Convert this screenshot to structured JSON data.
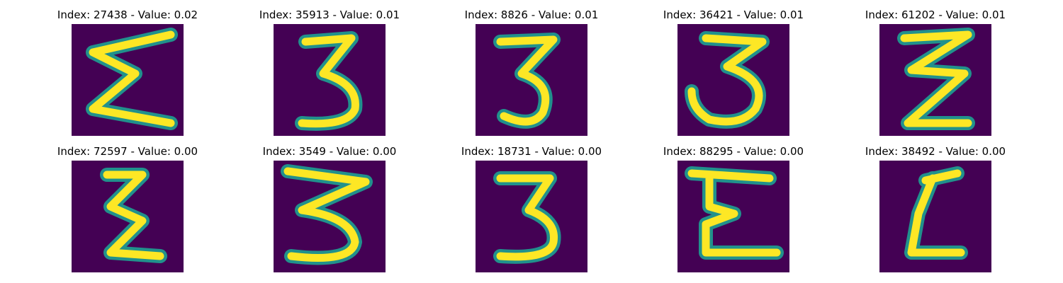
{
  "colors": {
    "background": "#440154",
    "stroke_outer": "#21918c",
    "stroke_inner": "#fde725"
  },
  "panels": [
    {
      "title": "Index: 27438 - Value: 0.02",
      "glyph": "sigma"
    },
    {
      "title": "Index: 35913 - Value: 0.01",
      "glyph": "three-flat"
    },
    {
      "title": "Index: 8826 - Value: 0.01",
      "glyph": "three-round"
    },
    {
      "title": "Index: 36421 - Value: 0.01",
      "glyph": "three-wide"
    },
    {
      "title": "Index: 61202 - Value: 0.01",
      "glyph": "zigzag"
    },
    {
      "title": "Index: 72597 - Value: 0.00",
      "glyph": "sigma-narrow"
    },
    {
      "title": "Index: 3549 - Value: 0.00",
      "glyph": "three-jagged"
    },
    {
      "title": "Index: 18731 - Value: 0.00",
      "glyph": "three-tall"
    },
    {
      "title": "Index: 88295 - Value: 0.00",
      "glyph": "epsilon"
    },
    {
      "title": "Index: 38492 - Value: 0.00",
      "glyph": "l-shape"
    }
  ]
}
